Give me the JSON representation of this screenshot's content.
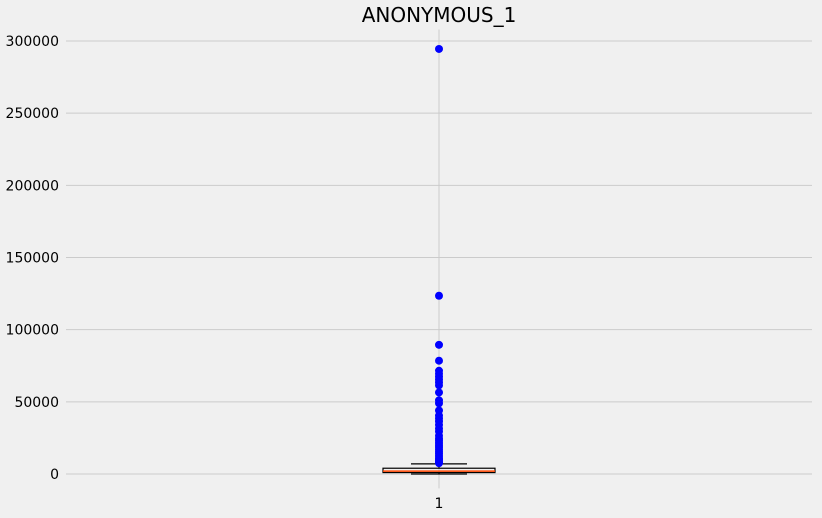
{
  "chart_data": {
    "type": "box",
    "title": "ANONYMOUS_1",
    "xlabel": "",
    "ylabel": "",
    "categories": [
      "1"
    ],
    "ylim": [
      -10000,
      308000
    ],
    "yticks": [
      0,
      50000,
      100000,
      150000,
      200000,
      250000,
      300000
    ],
    "ytick_labels": [
      "0",
      "50000",
      "100000",
      "150000",
      "200000",
      "250000",
      "300000"
    ],
    "grid": true,
    "box": {
      "category": "1",
      "whisker_low": 0,
      "q1": 1000,
      "median": 2000,
      "q3": 4000,
      "whisker_high": 7000
    },
    "outliers": [
      294500,
      123500,
      89500,
      78500,
      71500,
      69500,
      67500,
      65500,
      63500,
      61500,
      56500,
      51000,
      49000,
      44000,
      40500,
      38500,
      36500,
      34000,
      31500,
      29500,
      26500,
      24500,
      23000,
      21500,
      20000,
      18500,
      17000,
      15500,
      14000,
      12500,
      11000,
      10000,
      9000,
      8000,
      7500
    ],
    "colors": {
      "background": "#f0f0f0",
      "grid": "#cbcbcb",
      "box_edge": "#000000",
      "median": "#ff4500",
      "outlier": "#0000ff"
    }
  }
}
